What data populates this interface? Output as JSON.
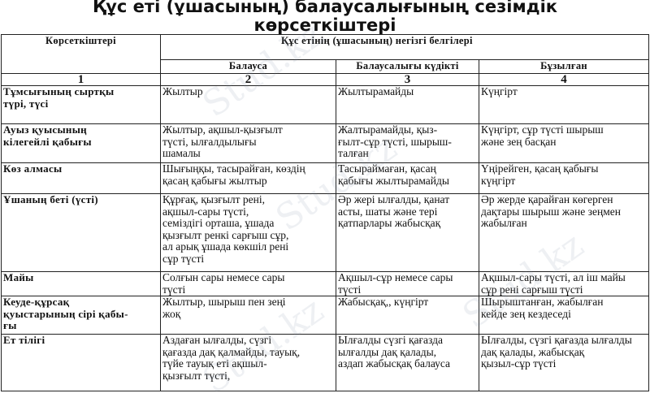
{
  "title": "Құс еті (ұшасының) балаусалығының сезімдік\nкөрсеткіштері",
  "table": {
    "header_indicator": "Көрсеткіштері",
    "header_group": "Құс етінің (ұшасының) негізгі белгілері",
    "subheaders": [
      "Балауса",
      "Балаусалығы күдікті",
      "Бұзылған"
    ],
    "column_numbers": [
      "1",
      "2",
      "3",
      "4"
    ],
    "rows": [
      {
        "label": "Тұмсығының сыртқы\nтүрі, түсі",
        "cells": [
          "Жылтыр",
          "Жылтырамайды",
          "Күңгірт"
        ]
      },
      {
        "label": "Ауыз қуысының\nкілегейлі қабығы",
        "cells": [
          "Жылтыр, ақшыл-қызғылт\nтүсті, ылғалдылығы\nшамалы",
          "Жалтырамайды, қыз-\nғылт-сұр түсті, шырыш-\nталған",
          "Күңгірт, сұр түсті шырыш\nжәне зең басқан"
        ]
      },
      {
        "label": "Көз алмасы",
        "cells": [
          "Шығыңқы, тасырайған, көздің\nқасаң қабығы жылтыр",
          "Тасыраймаған, қасаң\nқабығы жылтырамайды",
          "Үңірейген, қасаң қабығы\nкүңгірт"
        ]
      },
      {
        "label": "Ұшаның беті (үсті)",
        "cells": [
          "Құрғақ, қызғылт рені,\nақшыл-сары түсті,\nсеміздігі орташа, ұшада\nқызғылт ренкі сарғыш сұр,\nал арық ұшада көкшіл рені\nсұр түсті",
          "Әр жері ылғалды, қанат\nасты, шаты және тері\nқатпарлары жабысқақ",
          "Әр жерде қарайған көгерген\nдақтары шырыш және зеңмен\nжабылған"
        ]
      },
      {
        "label": "Майы",
        "cells": [
          "Солғын сары немесе сары\nтүсті",
          "Ақшыл-сұр немесе сары\nтүсті",
          "Ақшыл-сары түсті, ал іш майы\nсұр рені сарғыш түсті"
        ]
      },
      {
        "label": "Кеуде-құрсақ\nқуыстарының сірі қабы-\nғы",
        "cells": [
          "Жылтыр, шырыш пен зеңі\nжоқ",
          "Жабысқақ,, күңгірт",
          "Шырыштанған, жабылған\nкейде зең кездеседі"
        ]
      },
      {
        "label": "Ет тілігі",
        "cells": [
          "Аздаған ылғалды, сүзгі\nқағазда дақ қалмайды, тауық,\nтүйе тауық еті ақшыл-\nқызғылт түсті,",
          "Ылғалды сүзгі қағазда\nылғалды дақ қалады,\nаздап жабысқақ балауса",
          "Ылғалды, сүзгі қағазда ылғалды\nдақ қалады, жабысқақ\nқызыл-сұр түсті"
        ]
      }
    ]
  },
  "watermark": "Stud.kz"
}
